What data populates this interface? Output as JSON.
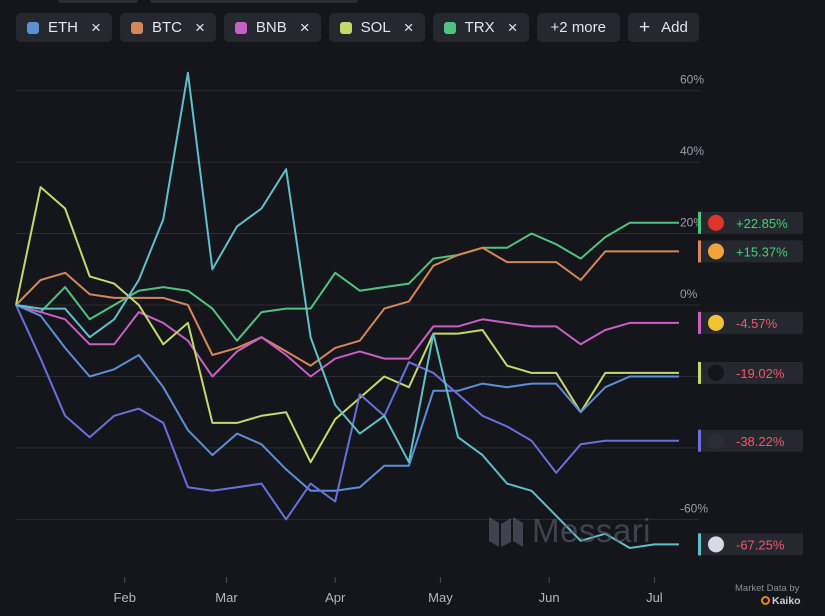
{
  "filters": {
    "chips": [
      {
        "label": "ETH",
        "color": "#5b8fd6"
      },
      {
        "label": "BTC",
        "color": "#d4875a"
      },
      {
        "label": "BNB",
        "color": "#c85fc4"
      },
      {
        "label": "SOL",
        "color": "#c6d86c"
      },
      {
        "label": "TRX",
        "color": "#4fc47e"
      }
    ],
    "remove_icon": "×",
    "more_label": "+2 more",
    "add_label": "Add",
    "add_icon": "+"
  },
  "branding": {
    "watermark": "Messari",
    "credit_line1": "Market Data by",
    "credit_line2": "Kaiko"
  },
  "chart_data": {
    "type": "line",
    "x": [
      "2024-01-01",
      "2024-01-08",
      "2024-01-15",
      "2024-01-22",
      "2024-01-29",
      "2024-02-05",
      "2024-02-12",
      "2024-02-19",
      "2024-02-26",
      "2024-03-04",
      "2024-03-11",
      "2024-03-18",
      "2024-03-25",
      "2024-04-01",
      "2024-04-08",
      "2024-04-15",
      "2024-04-22",
      "2024-04-29",
      "2024-05-06",
      "2024-05-13",
      "2024-05-20",
      "2024-05-27",
      "2024-06-03",
      "2024-06-10",
      "2024-06-17",
      "2024-06-24",
      "2024-07-01",
      "2024-07-08"
    ],
    "x_tick_labels": [
      "Feb",
      "Mar",
      "Apr",
      "May",
      "Jun",
      "Jul"
    ],
    "x_tick_values": [
      "2024-02-01",
      "2024-03-01",
      "2024-04-01",
      "2024-05-01",
      "2024-06-01",
      "2024-07-01"
    ],
    "y_tick_values": [
      -60,
      -40,
      -20,
      0,
      20,
      40,
      60
    ],
    "y_tick_labels": [
      "-60%",
      "",
      "",
      "0%",
      "20%",
      "40%",
      "60%"
    ],
    "ylim": [
      -82,
      72
    ],
    "xlim": [
      "2024-01-01",
      "2024-07-14"
    ],
    "grid": true,
    "series": [
      {
        "name": "TRX",
        "color": "#4fc47e",
        "end_label": "+22.85%",
        "icon": "trx",
        "values": [
          0,
          -2,
          5,
          -4,
          0,
          4,
          5,
          4,
          -1,
          -10,
          -2,
          -1,
          -1,
          9,
          4,
          5,
          6,
          13,
          14,
          16,
          16,
          20,
          17,
          13,
          19,
          23,
          23,
          23
        ]
      },
      {
        "name": "BTC",
        "color": "#d4875a",
        "end_label": "+15.37%",
        "icon": "btc",
        "values": [
          0,
          7,
          9,
          3,
          2,
          2,
          2,
          0,
          -14,
          -12,
          -9,
          -13,
          -17,
          -12,
          -10,
          -1,
          1,
          11,
          14,
          16,
          12,
          12,
          12,
          7,
          15,
          15,
          15,
          15
        ]
      },
      {
        "name": "BNB",
        "color": "#c85fc4",
        "end_label": "-4.57%",
        "icon": "bnb",
        "values": [
          0,
          -2,
          -4,
          -11,
          -11,
          -2,
          -5,
          -10,
          -20,
          -13,
          -9,
          -14,
          -20,
          -15,
          -13,
          -15,
          -15,
          -6,
          -6,
          -4,
          -5,
          -6,
          -6,
          -11,
          -7,
          -5,
          -5,
          -5
        ]
      },
      {
        "name": "SOL",
        "color": "#c6d86c",
        "end_label": "-19.02%",
        "icon": "sol",
        "values": [
          0,
          33,
          27,
          8,
          6,
          0,
          -11,
          -5,
          -33,
          -33,
          -31,
          -30,
          -44,
          -32,
          -26,
          -20,
          -23,
          -8,
          -8,
          -7,
          -17,
          -19,
          -19,
          -30,
          -19,
          -19,
          -19,
          -19
        ]
      },
      {
        "name": "ETH",
        "color": "#5b8fd6",
        "end_label": "",
        "icon": "",
        "values": [
          0,
          -3,
          -12,
          -20,
          -18,
          -14,
          -23,
          -35,
          -42,
          -36,
          -39,
          -46,
          -52,
          -52,
          -51,
          -45,
          -45,
          -24,
          -24,
          -22,
          -23,
          -22,
          -22,
          -30,
          -23,
          -20,
          -20,
          -20
        ]
      },
      {
        "name": "",
        "color": "#6a6fdc",
        "end_label": "-38.22%",
        "icon": "drop",
        "values": [
          0,
          -15,
          -31,
          -37,
          -31,
          -29,
          -33,
          -51,
          -52,
          -51,
          -50,
          -60,
          -50,
          -55,
          -25,
          -31,
          -16,
          -19,
          -25,
          -31,
          -34,
          -38,
          -47,
          -39,
          -38,
          -38,
          -38,
          -38
        ]
      },
      {
        "name": "",
        "color": "#5fc0c8",
        "end_label": "-67.25%",
        "icon": "fil",
        "values": [
          0,
          -1,
          -1,
          -9,
          -4,
          7,
          24,
          65,
          10,
          22,
          27,
          38,
          -9,
          -28,
          -36,
          -31,
          -44,
          -8,
          -37,
          -42,
          -50,
          -52,
          -59,
          -66,
          -64,
          -68,
          -67,
          -67
        ]
      }
    ]
  }
}
